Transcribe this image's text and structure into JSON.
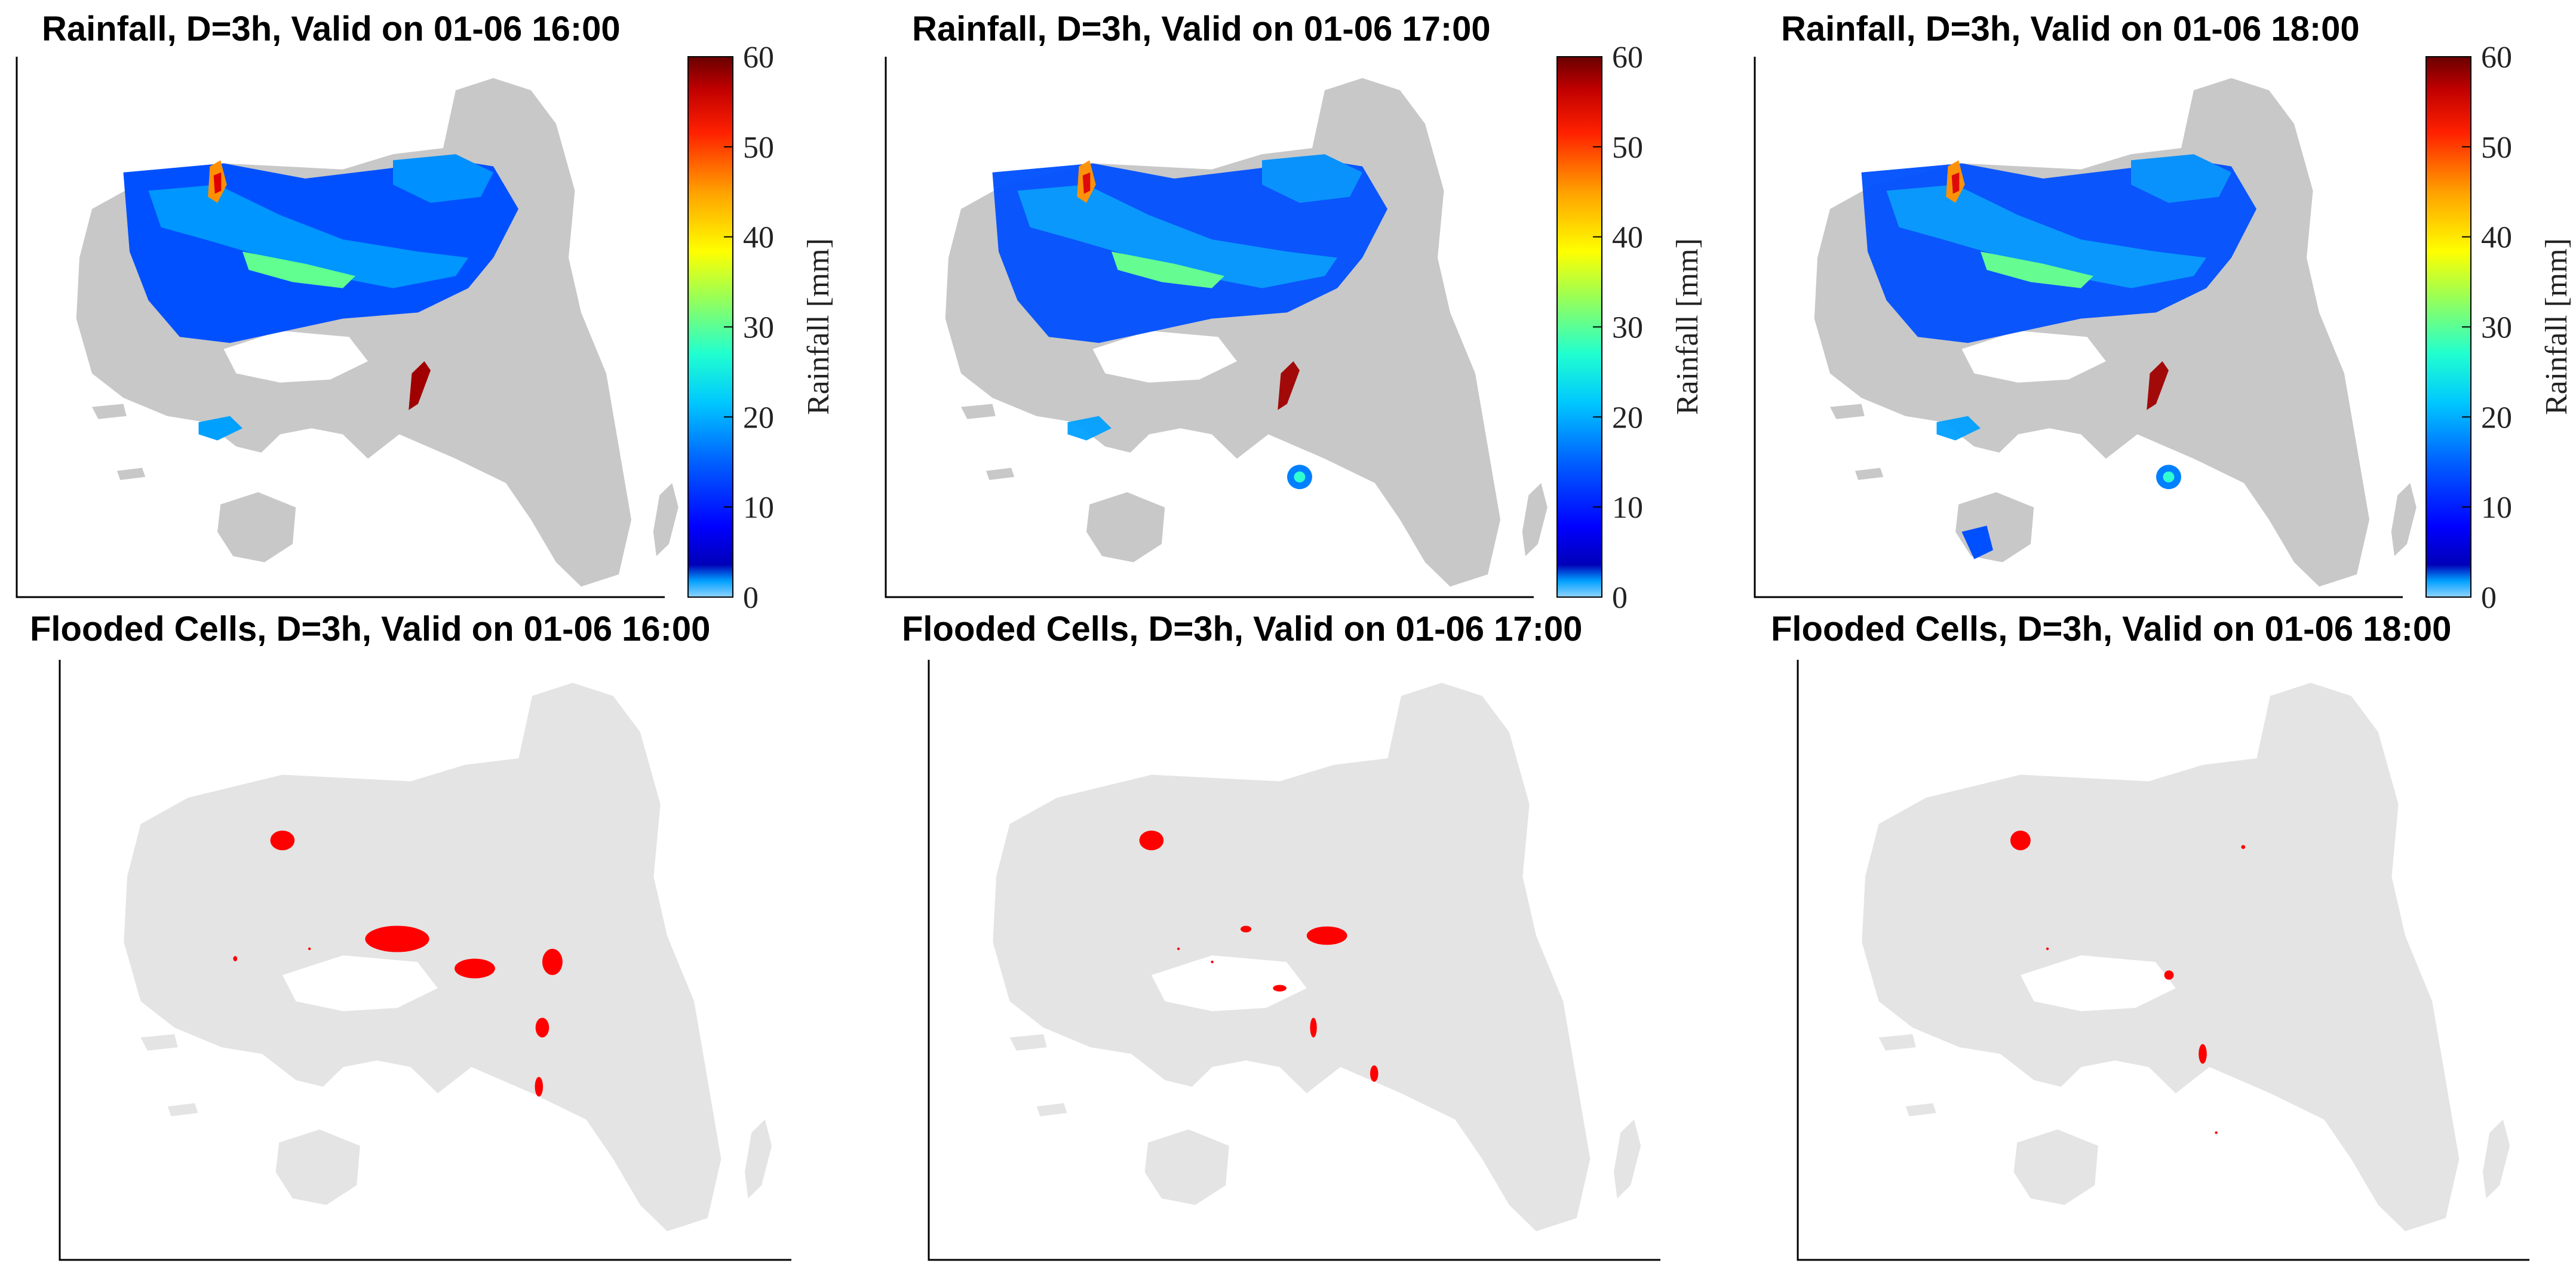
{
  "figure": {
    "rain_panels": [
      {
        "title": "Rainfall, D=3h, Valid on 01-06 16:00",
        "time": "16:00"
      },
      {
        "title": "Rainfall, D=3h, Valid on 01-06 17:00",
        "time": "17:00"
      },
      {
        "title": "Rainfall, D=3h, Valid on 01-06 18:00",
        "time": "18:00"
      }
    ],
    "flood_panels": [
      {
        "title": "Flooded Cells, D=3h, Valid on 01-06 16:00",
        "time": "16:00"
      },
      {
        "title": "Flooded Cells, D=3h, Valid on 01-06 17:00",
        "time": "17:00"
      },
      {
        "title": "Flooded Cells, D=3h, Valid on 01-06 18:00",
        "time": "18:00"
      }
    ],
    "colorbar": {
      "label": "Rainfall [mm]",
      "ticks": [
        "0",
        "10",
        "20",
        "30",
        "40",
        "50",
        "60"
      ],
      "min": 0,
      "max": 60
    },
    "colors": {
      "land_rain": "#c8c8c8",
      "land_flood": "#e4e4e4",
      "flood": "#ff0000"
    }
  }
}
